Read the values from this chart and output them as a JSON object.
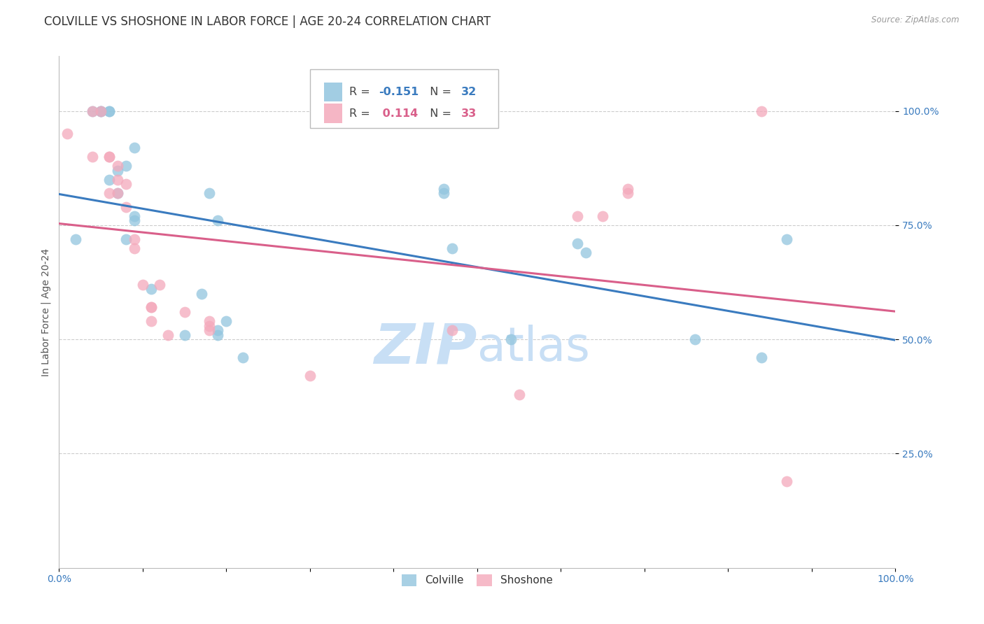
{
  "title": "COLVILLE VS SHOSHONE IN LABOR FORCE | AGE 20-24 CORRELATION CHART",
  "source": "Source: ZipAtlas.com",
  "ylabel": "In Labor Force | Age 20-24",
  "colville_R": -0.151,
  "colville_N": 32,
  "shoshone_R": 0.114,
  "shoshone_N": 33,
  "colville_color": "#92c5de",
  "shoshone_color": "#f4a9bb",
  "colville_line_color": "#3a7bbf",
  "shoshone_line_color": "#d95f8a",
  "colville_x": [
    0.02,
    0.04,
    0.05,
    0.05,
    0.06,
    0.06,
    0.06,
    0.07,
    0.07,
    0.08,
    0.08,
    0.09,
    0.09,
    0.09,
    0.11,
    0.15,
    0.17,
    0.18,
    0.19,
    0.19,
    0.19,
    0.2,
    0.22,
    0.46,
    0.46,
    0.47,
    0.54,
    0.62,
    0.63,
    0.76,
    0.84,
    0.87
  ],
  "colville_y": [
    0.72,
    1.0,
    1.0,
    1.0,
    0.85,
    1.0,
    1.0,
    0.82,
    0.87,
    0.72,
    0.88,
    0.76,
    0.77,
    0.92,
    0.61,
    0.51,
    0.6,
    0.82,
    0.51,
    0.52,
    0.76,
    0.54,
    0.46,
    0.82,
    0.83,
    0.7,
    0.5,
    0.71,
    0.69,
    0.5,
    0.46,
    0.72
  ],
  "shoshone_x": [
    0.01,
    0.04,
    0.04,
    0.05,
    0.06,
    0.06,
    0.06,
    0.07,
    0.07,
    0.07,
    0.08,
    0.08,
    0.09,
    0.09,
    0.1,
    0.11,
    0.11,
    0.11,
    0.12,
    0.13,
    0.15,
    0.18,
    0.18,
    0.18,
    0.3,
    0.47,
    0.55,
    0.62,
    0.65,
    0.68,
    0.68,
    0.84,
    0.87
  ],
  "shoshone_y": [
    0.95,
    1.0,
    0.9,
    1.0,
    0.82,
    0.9,
    0.9,
    0.82,
    0.88,
    0.85,
    0.79,
    0.84,
    0.7,
    0.72,
    0.62,
    0.57,
    0.57,
    0.54,
    0.62,
    0.51,
    0.56,
    0.52,
    0.53,
    0.54,
    0.42,
    0.52,
    0.38,
    0.77,
    0.77,
    0.83,
    0.82,
    1.0,
    0.19
  ],
  "xlim": [
    0.0,
    1.0
  ],
  "ylim": [
    0.0,
    1.12
  ],
  "yticks": [
    0.25,
    0.5,
    0.75,
    1.0
  ],
  "ytick_labels": [
    "25.0%",
    "50.0%",
    "75.0%",
    "100.0%"
  ],
  "xticks": [
    0.0,
    0.1,
    0.2,
    0.3,
    0.4,
    0.5,
    0.6,
    0.7,
    0.8,
    0.9,
    1.0
  ],
  "xtick_labels_show": [
    "0.0%",
    "100.0%"
  ],
  "grid_color": "#cccccc",
  "background_color": "#ffffff",
  "watermark_zip": "ZIP",
  "watermark_atlas": "atlas",
  "watermark_color_zip": "#c8dff5",
  "watermark_color_atlas": "#c8dff5",
  "title_fontsize": 12,
  "axis_label_fontsize": 10,
  "tick_fontsize": 10,
  "legend_fontsize": 12
}
